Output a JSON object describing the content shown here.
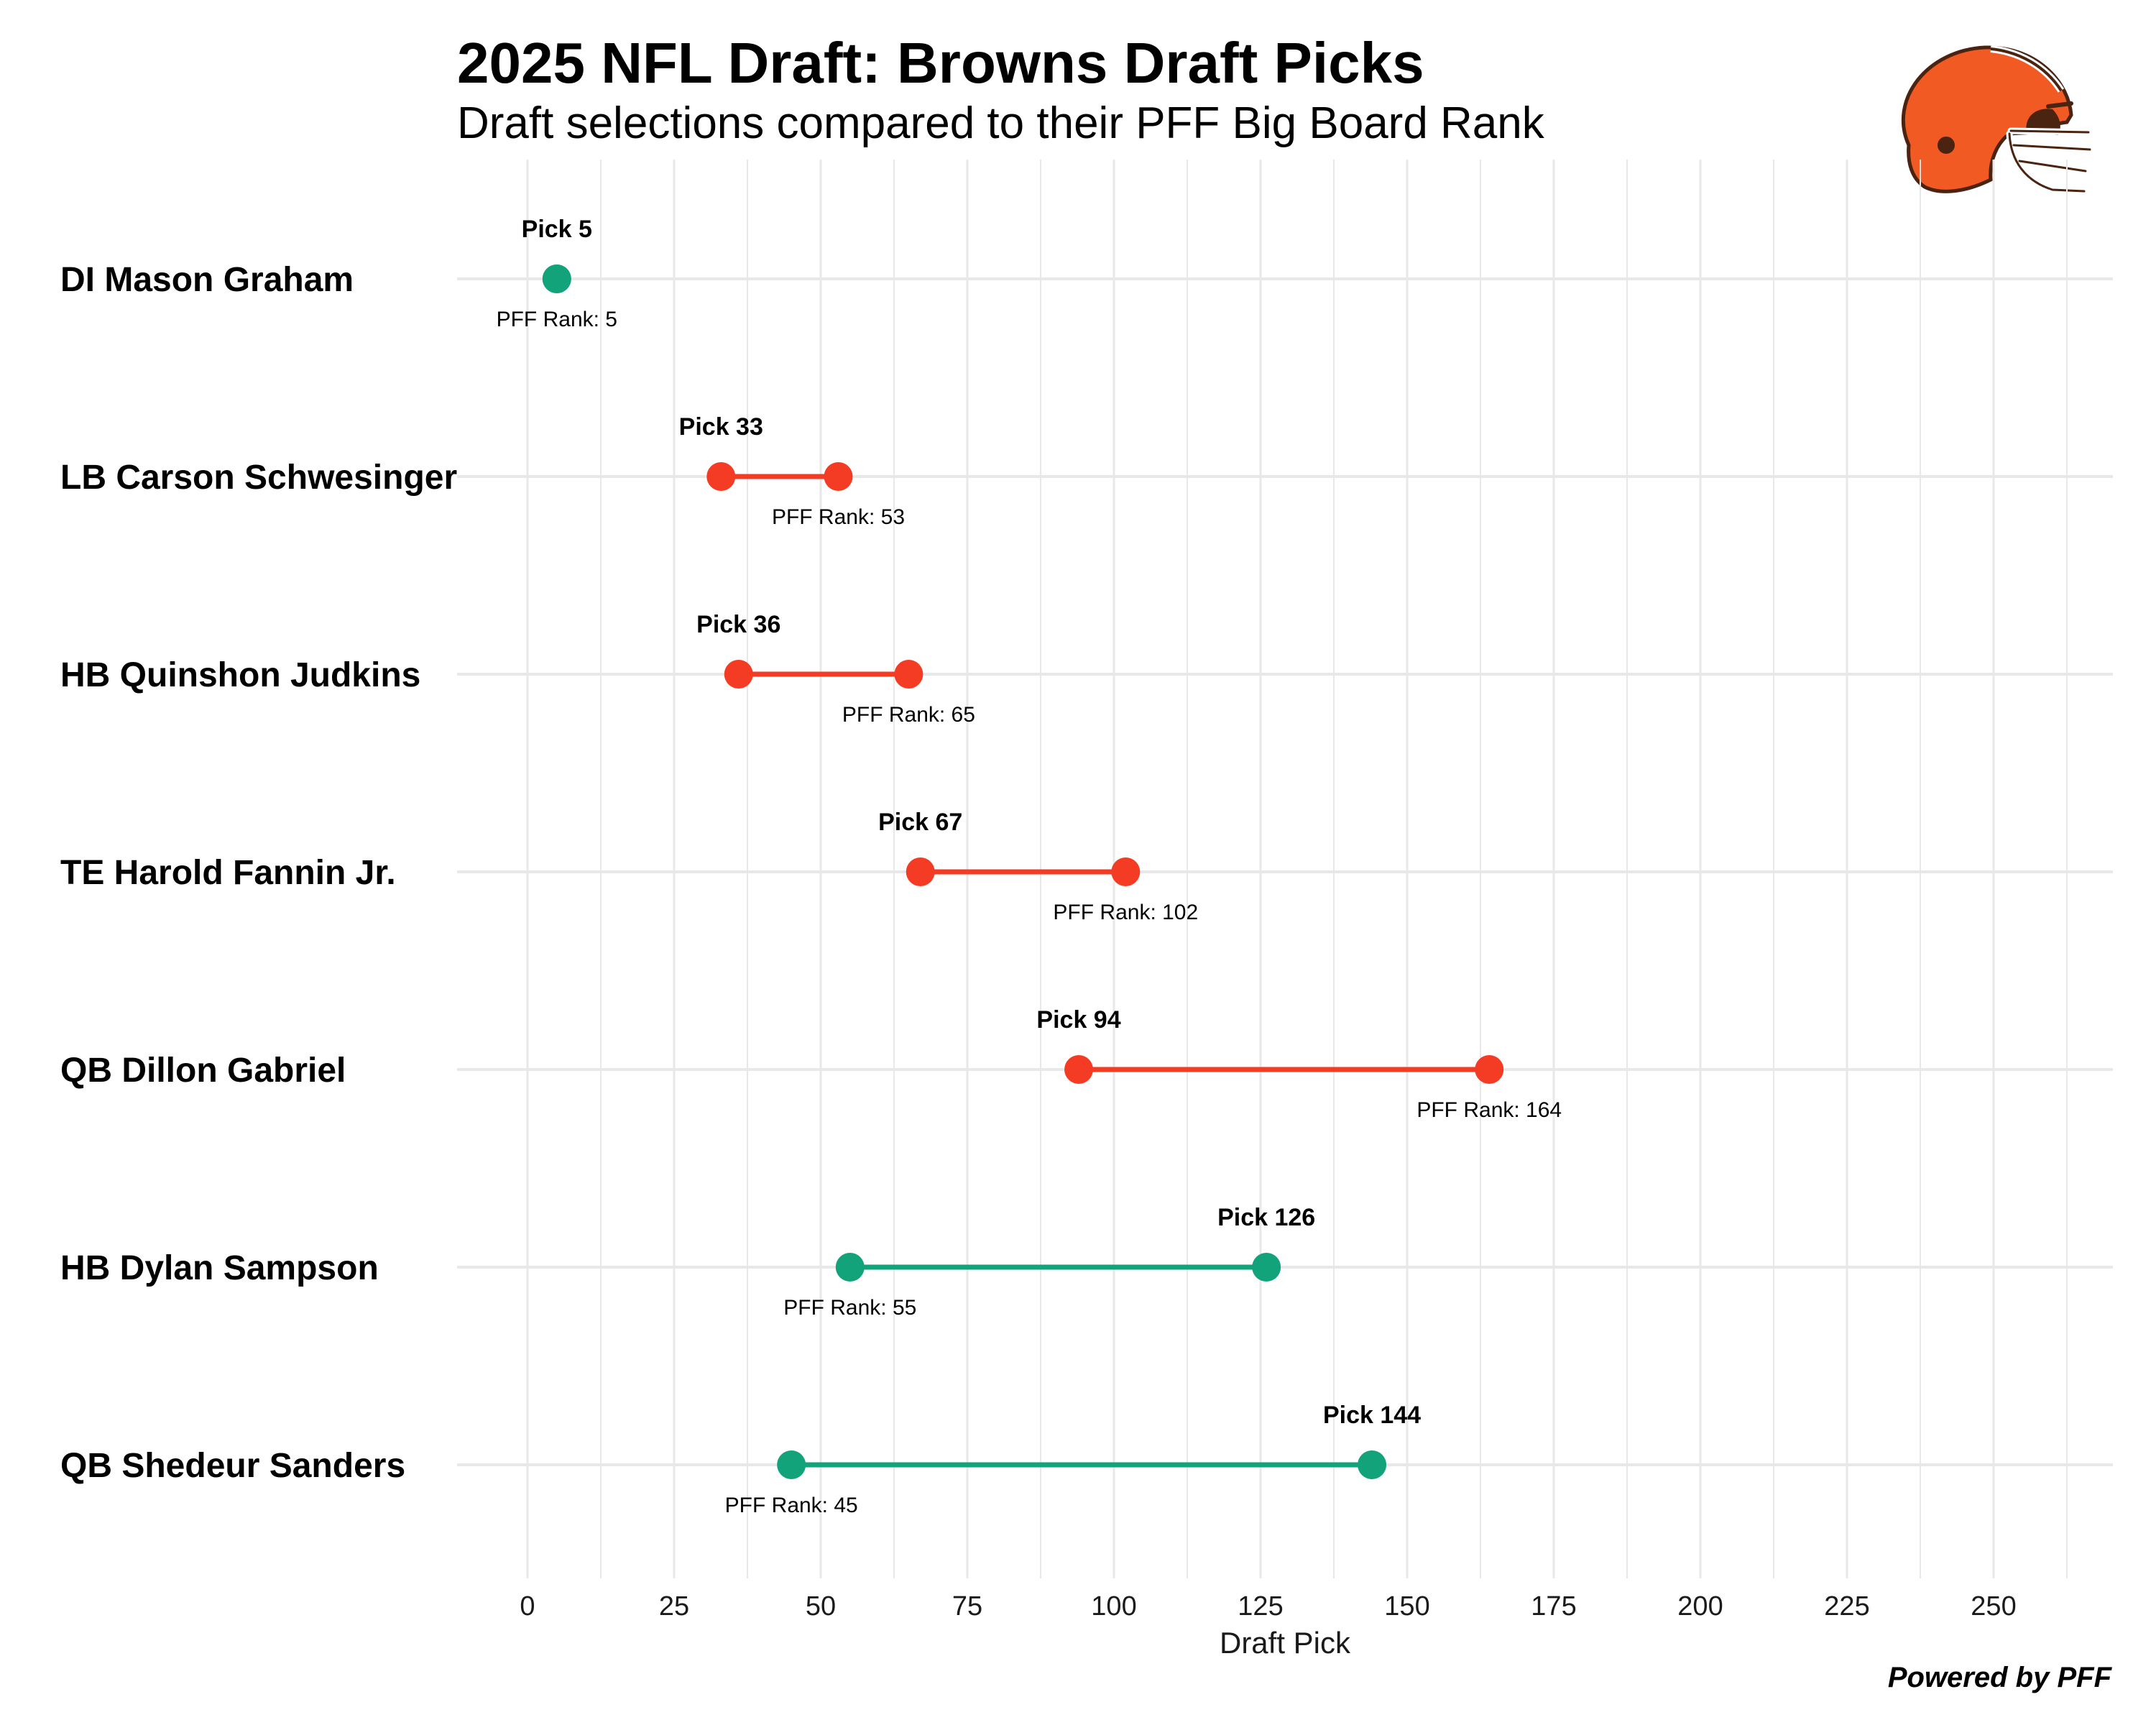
{
  "header": {
    "title": "2025 NFL Draft: Browns Draft Picks",
    "subtitle": "Draft selections compared to their PFF Big Board Rank"
  },
  "footer": {
    "caption": "Powered by PFF"
  },
  "logo": {
    "icon": "browns-helmet-icon"
  },
  "colors": {
    "reach": "#f43b24",
    "value": "#12a37a",
    "grid": "#e8e8e8"
  },
  "chart_data": {
    "type": "dumbbell",
    "title": "2025 NFL Draft: Browns Draft Picks",
    "subtitle": "Draft selections compared to their PFF Big Board Rank",
    "xlabel": "Draft Pick",
    "ylabel": "",
    "xlim": [
      -12,
      270
    ],
    "xticks": [
      0,
      25,
      50,
      75,
      100,
      125,
      150,
      175,
      200,
      225,
      250
    ],
    "grid": true,
    "pick_label_prefix": "Pick ",
    "rank_label_prefix": "PFF Rank: ",
    "players": [
      {
        "name": "DI Mason Graham",
        "pick": 5,
        "pff_rank": 5,
        "status": "value"
      },
      {
        "name": "LB Carson Schwesinger",
        "pick": 33,
        "pff_rank": 53,
        "status": "reach"
      },
      {
        "name": "HB Quinshon Judkins",
        "pick": 36,
        "pff_rank": 65,
        "status": "reach"
      },
      {
        "name": "TE Harold Fannin Jr.",
        "pick": 67,
        "pff_rank": 102,
        "status": "reach"
      },
      {
        "name": "QB Dillon Gabriel",
        "pick": 94,
        "pff_rank": 164,
        "status": "reach"
      },
      {
        "name": "HB Dylan Sampson",
        "pick": 126,
        "pff_rank": 55,
        "status": "value"
      },
      {
        "name": "QB Shedeur Sanders",
        "pick": 144,
        "pff_rank": 45,
        "status": "value"
      }
    ]
  }
}
